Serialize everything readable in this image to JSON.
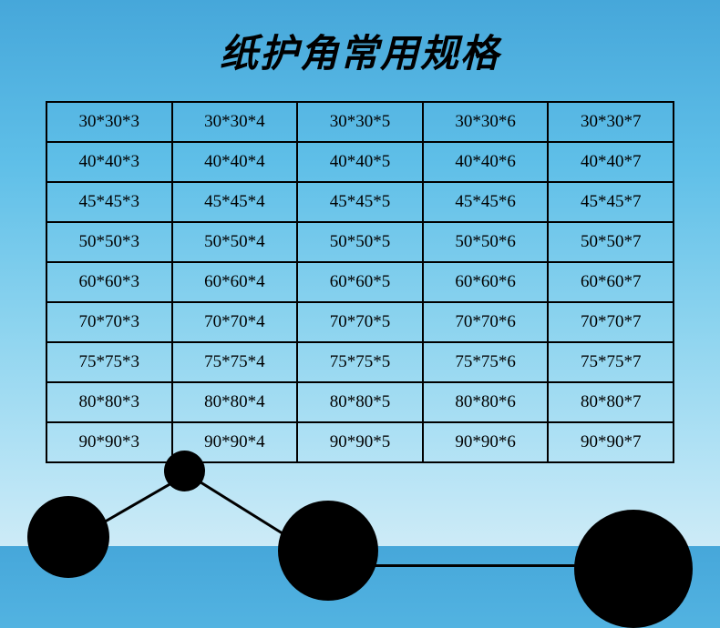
{
  "title": "纸护角常用规格",
  "table": {
    "rows": [
      [
        "30*30*3",
        "30*30*4",
        "30*30*5",
        "30*30*6",
        "30*30*7"
      ],
      [
        "40*40*3",
        "40*40*4",
        "40*40*5",
        "40*40*6",
        "40*40*7"
      ],
      [
        "45*45*3",
        "45*45*4",
        "45*45*5",
        "45*45*6",
        "45*45*7"
      ],
      [
        "50*50*3",
        "50*50*4",
        "50*50*5",
        "50*50*6",
        "50*50*7"
      ],
      [
        "60*60*3",
        "60*60*4",
        "60*60*5",
        "60*60*6",
        "60*60*7"
      ],
      [
        "70*70*3",
        "70*70*4",
        "70*70*5",
        "70*70*6",
        "70*70*7"
      ],
      [
        "75*75*3",
        "75*75*4",
        "75*75*5",
        "75*75*6",
        "75*75*7"
      ],
      [
        "80*80*3",
        "80*80*4",
        "80*80*5",
        "80*80*6",
        "80*80*7"
      ],
      [
        "90*90*3",
        "90*90*4",
        "90*90*5",
        "90*90*6",
        "90*90*7"
      ]
    ],
    "columns": 5,
    "border_color": "#000000",
    "cell_fontsize": 19,
    "cell_font": "Times New Roman"
  },
  "styling": {
    "background_gradient_top": "#46a7da",
    "background_gradient_bottom": "#cdebf7",
    "title_fontsize": 42,
    "title_color": "#000000",
    "decoration_color": "#000000"
  }
}
